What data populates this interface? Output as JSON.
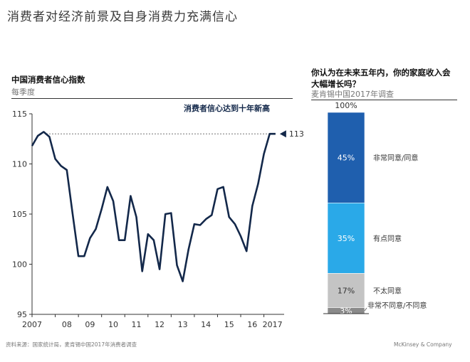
{
  "header": {
    "title": "消费者对经济前景及自身消费力充满信心"
  },
  "left_panel": {
    "title": "中国消费者信心指数",
    "subtitle": "每季度"
  },
  "right_panel": {
    "title": "你认为在未来五年内，你的家庭收入会大幅增长吗？",
    "subtitle": "麦肯锡中国2017年调查"
  },
  "footer": {
    "source": "资料来源：国家统计局，麦肯锡中国2017年消费者调查",
    "brand": "McKinsey & Company"
  },
  "chart_data": [
    {
      "type": "line",
      "title": "中国消费者信心指数",
      "subtitle": "每季度",
      "annotation": "消费者信心达到十年新高",
      "end_label": "113",
      "x_tick_labels": [
        "2007",
        "08",
        "09",
        "10",
        "11",
        "12",
        "13",
        "14",
        "15",
        "16",
        "2017"
      ],
      "y_ticks": [
        95,
        100,
        105,
        110,
        115
      ],
      "ylim": [
        95,
        115
      ],
      "xlim": [
        2007.0,
        2017.75
      ],
      "reference_line": 113,
      "color": "#13284a",
      "x": [
        2007.0,
        2007.25,
        2007.5,
        2007.75,
        2008.0,
        2008.25,
        2008.5,
        2008.75,
        2009.0,
        2009.25,
        2009.5,
        2009.75,
        2010.0,
        2010.25,
        2010.5,
        2010.75,
        2011.0,
        2011.25,
        2011.5,
        2011.75,
        2012.0,
        2012.25,
        2012.5,
        2012.75,
        2013.0,
        2013.25,
        2013.5,
        2013.75,
        2014.0,
        2014.25,
        2014.5,
        2014.75,
        2015.0,
        2015.25,
        2015.5,
        2015.75,
        2016.0,
        2016.25,
        2016.5,
        2016.75,
        2017.0,
        2017.25,
        2017.5
      ],
      "y": [
        111.8,
        112.8,
        113.2,
        112.7,
        110.5,
        109.8,
        109.4,
        105.0,
        100.8,
        100.8,
        102.6,
        103.5,
        105.5,
        107.7,
        106.3,
        102.4,
        102.4,
        106.8,
        104.7,
        99.3,
        103.0,
        102.4,
        99.5,
        105.0,
        105.1,
        99.9,
        98.3,
        101.5,
        104.0,
        103.9,
        104.5,
        104.9,
        107.5,
        107.7,
        104.7,
        104.0,
        102.8,
        101.3,
        105.8,
        108.0,
        111.0,
        113.0,
        113.0
      ]
    },
    {
      "type": "bar",
      "title": "你认为在未来五年内，你的家庭收入会大幅增长吗？",
      "subtitle": "麦肯锡中国2017年调查",
      "total_label": "100%",
      "segments": [
        {
          "label": "非常同意/同意",
          "value": 45,
          "display": "45%",
          "color": "#1f5fae"
        },
        {
          "label": "有点同意",
          "value": 35,
          "display": "35%",
          "color": "#2aa9e8"
        },
        {
          "label": "不太同意",
          "value": 17,
          "display": "17%",
          "color": "#c4c4c4"
        },
        {
          "label": "非常不同意/不同意",
          "value": 3,
          "display": "3%",
          "color": "#8a8a8a"
        }
      ]
    }
  ]
}
